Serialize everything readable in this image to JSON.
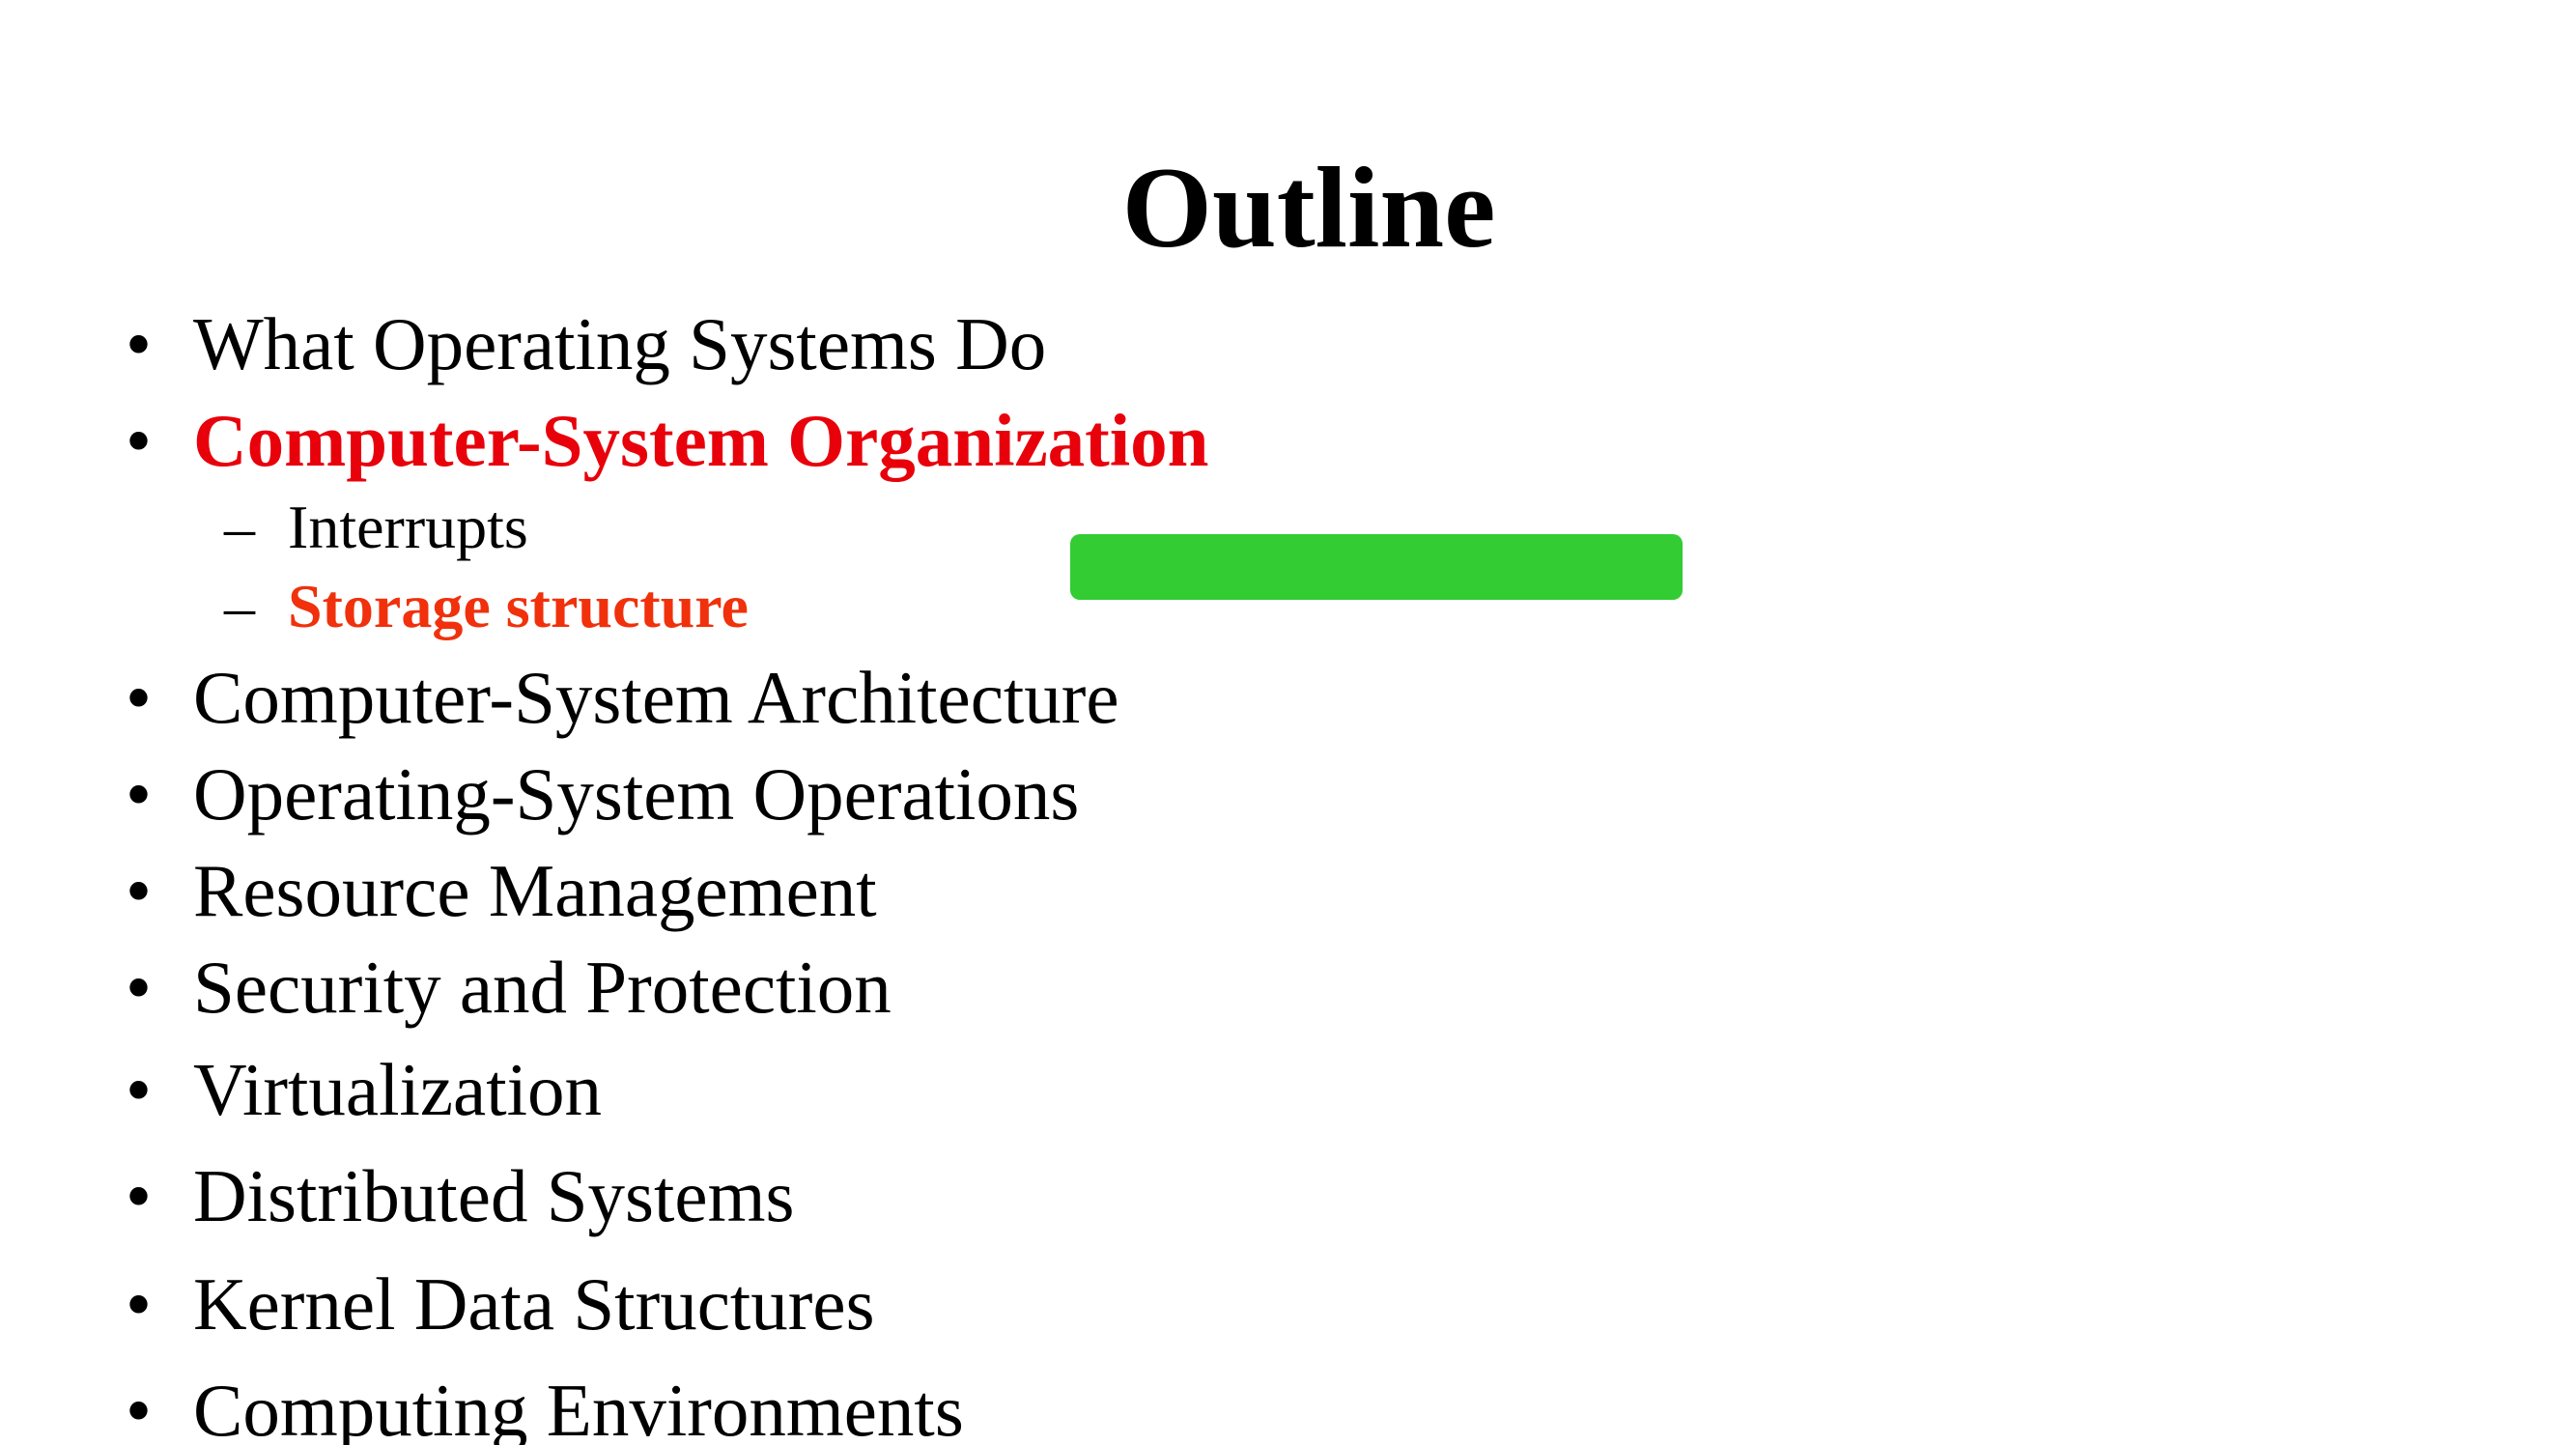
{
  "slide": {
    "title": "Outline",
    "items": [
      {
        "bullet": "•",
        "text": "What Operating Systems Do"
      },
      {
        "bullet": "•",
        "text": "Computer-System Organization"
      },
      {
        "bullet": "–",
        "text": "Interrupts"
      },
      {
        "bullet": "–",
        "text": "Storage structure"
      },
      {
        "bullet": "•",
        "text": "Computer-System Architecture"
      },
      {
        "bullet": "•",
        "text": "Operating-System Operations"
      },
      {
        "bullet": "•",
        "text": "Resource Management"
      },
      {
        "bullet": "•",
        "text": "Security and Protection"
      },
      {
        "bullet": "•",
        "text": "Virtualization"
      },
      {
        "bullet": "•",
        "text": "Distributed Systems"
      },
      {
        "bullet": "•",
        "text": "Kernel Data Structures"
      },
      {
        "bullet": "•",
        "text": "Computing Environments"
      }
    ]
  },
  "colors": {
    "highlight_red": "#e8000b",
    "highlight_orange": "#f0310c",
    "marker_green": "#33cc33"
  }
}
